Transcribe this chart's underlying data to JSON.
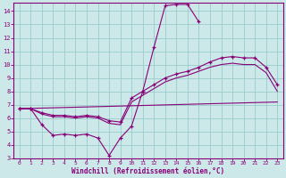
{
  "xlabel": "Windchill (Refroidissement éolien,°C)",
  "bg_color": "#cce8e8",
  "grid_color": "#99cccc",
  "line_color": "#880077",
  "xlim": [
    -0.5,
    23.5
  ],
  "ylim": [
    3,
    14.6
  ],
  "yticks": [
    3,
    4,
    5,
    6,
    7,
    8,
    9,
    10,
    11,
    12,
    13,
    14
  ],
  "xticks": [
    0,
    1,
    2,
    3,
    4,
    5,
    6,
    7,
    8,
    9,
    10,
    11,
    12,
    13,
    14,
    15,
    16,
    17,
    18,
    19,
    20,
    21,
    22,
    23
  ],
  "line1_x": [
    0,
    1,
    2,
    3,
    4,
    5,
    6,
    7,
    8,
    9,
    10,
    11,
    12,
    13,
    14,
    15,
    16
  ],
  "line1_y": [
    6.7,
    6.7,
    5.5,
    4.7,
    4.8,
    4.7,
    4.8,
    4.5,
    3.2,
    4.5,
    5.4,
    8.0,
    11.3,
    14.4,
    14.5,
    14.5,
    13.2
  ],
  "line2_x": [
    0,
    1,
    2,
    3,
    4,
    5,
    6,
    7,
    8,
    9,
    10,
    11,
    12,
    13,
    14,
    15,
    16,
    17,
    18,
    19,
    20,
    21,
    22,
    23
  ],
  "line2_y": [
    6.7,
    6.7,
    6.4,
    6.2,
    6.2,
    6.1,
    6.2,
    6.1,
    5.8,
    5.7,
    7.5,
    8.0,
    8.5,
    9.0,
    9.3,
    9.5,
    9.8,
    10.2,
    10.5,
    10.6,
    10.5,
    10.5,
    9.8,
    8.5
  ],
  "line3_x": [
    0,
    1,
    2,
    3,
    4,
    5,
    6,
    7,
    8,
    9,
    10,
    11,
    12,
    13,
    14,
    15,
    16,
    17,
    18,
    19,
    20,
    21,
    22,
    23
  ],
  "line3_y": [
    6.7,
    6.7,
    6.3,
    6.1,
    6.1,
    6.0,
    6.1,
    6.0,
    5.6,
    5.5,
    7.2,
    7.7,
    8.2,
    8.7,
    9.0,
    9.2,
    9.5,
    9.8,
    10.0,
    10.1,
    10.0,
    10.0,
    9.4,
    8.0
  ],
  "line4_x": [
    0,
    23
  ],
  "line4_y": [
    6.7,
    7.2
  ]
}
